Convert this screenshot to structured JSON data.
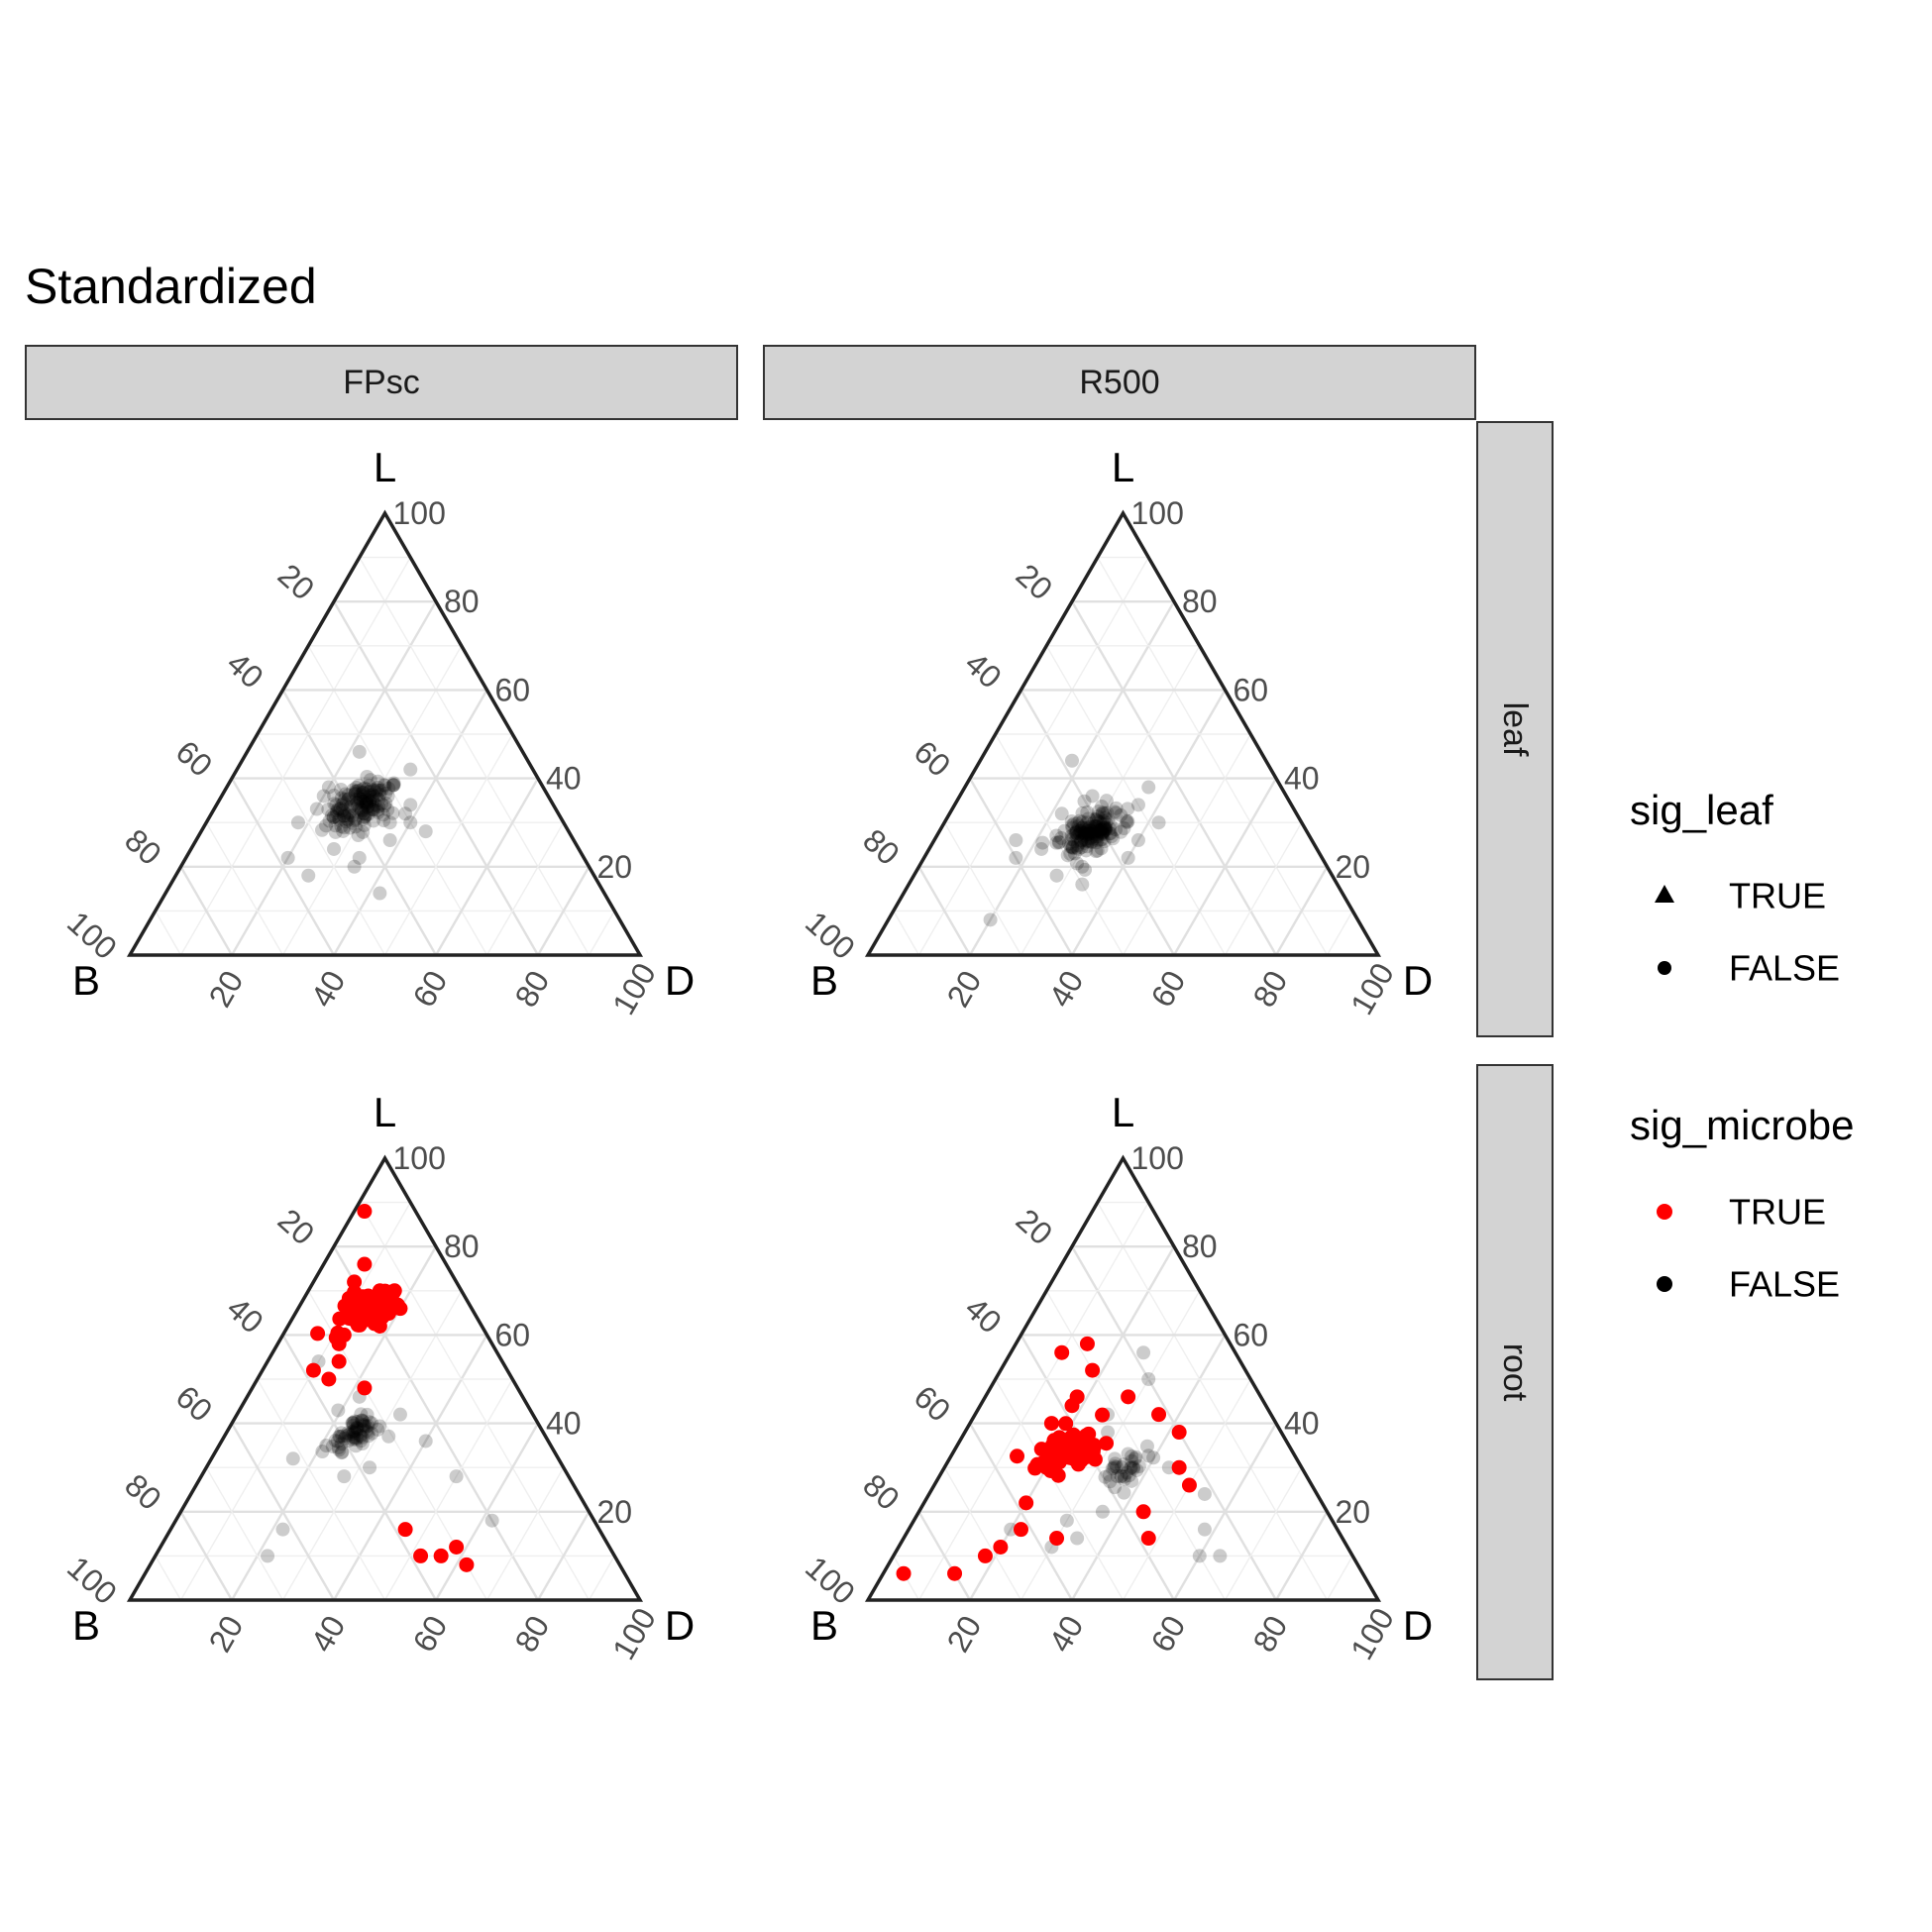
{
  "chart_data": {
    "type": "scatter",
    "subtype": "ternary",
    "title": "Standardized",
    "axes": {
      "top": "L",
      "left": "B",
      "right": "D"
    },
    "ticks": [
      20,
      40,
      60,
      80,
      100
    ],
    "grid": true,
    "col_facets": [
      "FPsc",
      "R500"
    ],
    "row_facets": [
      "leaf",
      "root"
    ],
    "colors": {
      "sig_true": "#ff0000",
      "sig_false": "#000000",
      "grid": "#e3e3e3",
      "strip": "#d3d3d3"
    },
    "legends": [
      {
        "title": "sig_leaf",
        "items": [
          {
            "label": "TRUE",
            "shape": "triangle"
          },
          {
            "label": "FALSE",
            "shape": "circle"
          }
        ]
      },
      {
        "title": "sig_microbe",
        "items": [
          {
            "label": "TRUE",
            "color": "#ff0000"
          },
          {
            "label": "FALSE",
            "color": "#000000"
          }
        ]
      }
    ],
    "legend_position": "right",
    "panels": [
      {
        "col": "FPsc",
        "row": "leaf",
        "clusters": [
          {
            "L": 34,
            "B": 38,
            "D": 28,
            "sd": 3.0,
            "n": 150,
            "sig": false
          }
        ],
        "points": [
          {
            "L": 30,
            "B": 52,
            "D": 18,
            "sig": false
          },
          {
            "L": 22,
            "B": 44,
            "D": 34,
            "sig": false
          },
          {
            "L": 30,
            "B": 30,
            "D": 40,
            "sig": false
          },
          {
            "L": 14,
            "B": 44,
            "D": 42,
            "sig": false
          },
          {
            "L": 22,
            "B": 58,
            "D": 20,
            "sig": false
          },
          {
            "L": 20,
            "B": 46,
            "D": 34,
            "sig": false
          },
          {
            "L": 46,
            "B": 32,
            "D": 22,
            "sig": false
          },
          {
            "L": 30,
            "B": 34,
            "D": 36,
            "sig": false
          },
          {
            "L": 26,
            "B": 36,
            "D": 38,
            "sig": false
          },
          {
            "L": 18,
            "B": 56,
            "D": 26,
            "sig": false
          },
          {
            "L": 42,
            "B": 24,
            "D": 34,
            "sig": false
          },
          {
            "L": 32,
            "B": 30,
            "D": 38,
            "sig": false
          },
          {
            "L": 36,
            "B": 44,
            "D": 20,
            "sig": false
          },
          {
            "L": 28,
            "B": 28,
            "D": 44,
            "sig": false
          },
          {
            "L": 34,
            "B": 28,
            "D": 38,
            "sig": false
          },
          {
            "L": 24,
            "B": 48,
            "D": 28,
            "sig": false
          },
          {
            "L": 38,
            "B": 42,
            "D": 20,
            "sig": false
          }
        ]
      },
      {
        "col": "R500",
        "row": "leaf",
        "clusters": [
          {
            "L": 28,
            "B": 42,
            "D": 30,
            "sd": 2.5,
            "n": 160,
            "sig": false
          }
        ],
        "points": [
          {
            "L": 8,
            "B": 72,
            "D": 20,
            "sig": false
          },
          {
            "L": 22,
            "B": 60,
            "D": 18,
            "sig": false
          },
          {
            "L": 44,
            "B": 38,
            "D": 18,
            "sig": false
          },
          {
            "L": 38,
            "B": 26,
            "D": 36,
            "sig": false
          },
          {
            "L": 24,
            "B": 54,
            "D": 22,
            "sig": false
          },
          {
            "L": 18,
            "B": 54,
            "D": 28,
            "sig": false
          },
          {
            "L": 34,
            "B": 30,
            "D": 36,
            "sig": false
          },
          {
            "L": 30,
            "B": 28,
            "D": 42,
            "sig": false
          },
          {
            "L": 20,
            "B": 48,
            "D": 32,
            "sig": false
          },
          {
            "L": 26,
            "B": 34,
            "D": 40,
            "sig": false
          },
          {
            "L": 16,
            "B": 50,
            "D": 34,
            "sig": false
          },
          {
            "L": 36,
            "B": 38,
            "D": 26,
            "sig": false
          },
          {
            "L": 32,
            "B": 46,
            "D": 22,
            "sig": false
          },
          {
            "L": 26,
            "B": 58,
            "D": 16,
            "sig": false
          },
          {
            "L": 22,
            "B": 38,
            "D": 40,
            "sig": false
          }
        ]
      },
      {
        "col": "FPsc",
        "row": "root",
        "clusters": [
          {
            "L": 66,
            "B": 21,
            "D": 13,
            "sd": 2.5,
            "n": 75,
            "sig": true
          },
          {
            "L": 38,
            "B": 37,
            "D": 25,
            "sd": 2.2,
            "n": 65,
            "sig": false
          }
        ],
        "points": [
          {
            "L": 88,
            "B": 10,
            "D": 2,
            "sig": true
          },
          {
            "L": 76,
            "B": 16,
            "D": 8,
            "sig": true
          },
          {
            "L": 70,
            "B": 16,
            "D": 14,
            "sig": true
          },
          {
            "L": 52,
            "B": 38,
            "D": 10,
            "sig": true
          },
          {
            "L": 48,
            "B": 30,
            "D": 22,
            "sig": true
          },
          {
            "L": 72,
            "B": 20,
            "D": 8,
            "sig": true
          },
          {
            "L": 60,
            "B": 28,
            "D": 12,
            "sig": true
          },
          {
            "L": 66,
            "B": 14,
            "D": 20,
            "sig": true
          },
          {
            "L": 50,
            "B": 36,
            "D": 14,
            "sig": true
          },
          {
            "L": 62,
            "B": 20,
            "D": 18,
            "sig": true
          },
          {
            "L": 54,
            "B": 32,
            "D": 14,
            "sig": true
          },
          {
            "L": 58,
            "B": 30,
            "D": 12,
            "sig": true
          },
          {
            "L": 16,
            "B": 38,
            "D": 46,
            "sig": true
          },
          {
            "L": 10,
            "B": 38,
            "D": 52,
            "sig": true
          },
          {
            "L": 10,
            "B": 34,
            "D": 56,
            "sig": true
          },
          {
            "L": 12,
            "B": 30,
            "D": 58,
            "sig": true
          },
          {
            "L": 8,
            "B": 30,
            "D": 62,
            "sig": true
          },
          {
            "L": 10,
            "B": 68,
            "D": 22,
            "sig": false
          },
          {
            "L": 16,
            "B": 62,
            "D": 22,
            "sig": false
          },
          {
            "L": 54,
            "B": 36,
            "D": 10,
            "sig": false
          },
          {
            "L": 32,
            "B": 52,
            "D": 16,
            "sig": false
          },
          {
            "L": 42,
            "B": 26,
            "D": 32,
            "sig": false
          },
          {
            "L": 36,
            "B": 24,
            "D": 40,
            "sig": false
          },
          {
            "L": 28,
            "B": 22,
            "D": 50,
            "sig": false
          },
          {
            "L": 18,
            "B": 20,
            "D": 62,
            "sig": false
          },
          {
            "L": 34,
            "B": 42,
            "D": 24,
            "sig": false
          },
          {
            "L": 30,
            "B": 38,
            "D": 32,
            "sig": false
          },
          {
            "L": 46,
            "B": 32,
            "D": 22,
            "sig": false
          },
          {
            "L": 28,
            "B": 44,
            "D": 28,
            "sig": false
          }
        ]
      },
      {
        "col": "R500",
        "row": "root",
        "clusters": [
          {
            "L": 34,
            "B": 43,
            "D": 23,
            "sd": 2.5,
            "n": 70,
            "sig": true
          },
          {
            "L": 30,
            "B": 34,
            "D": 36,
            "sd": 2.0,
            "n": 35,
            "sig": false
          }
        ],
        "points": [
          {
            "L": 6,
            "B": 90,
            "D": 4,
            "sig": true
          },
          {
            "L": 6,
            "B": 80,
            "D": 14,
            "sig": true
          },
          {
            "L": 10,
            "B": 72,
            "D": 18,
            "sig": true
          },
          {
            "L": 12,
            "B": 68,
            "D": 20,
            "sig": true
          },
          {
            "L": 16,
            "B": 62,
            "D": 22,
            "sig": true
          },
          {
            "L": 14,
            "B": 56,
            "D": 30,
            "sig": true
          },
          {
            "L": 58,
            "B": 28,
            "D": 14,
            "sig": true
          },
          {
            "L": 56,
            "B": 34,
            "D": 10,
            "sig": true
          },
          {
            "L": 52,
            "B": 30,
            "D": 18,
            "sig": true
          },
          {
            "L": 46,
            "B": 26,
            "D": 28,
            "sig": true
          },
          {
            "L": 42,
            "B": 22,
            "D": 36,
            "sig": true
          },
          {
            "L": 38,
            "B": 20,
            "D": 42,
            "sig": true
          },
          {
            "L": 30,
            "B": 24,
            "D": 46,
            "sig": true
          },
          {
            "L": 26,
            "B": 24,
            "D": 50,
            "sig": true
          },
          {
            "L": 14,
            "B": 38,
            "D": 48,
            "sig": true
          },
          {
            "L": 20,
            "B": 36,
            "D": 44,
            "sig": true
          },
          {
            "L": 44,
            "B": 38,
            "D": 18,
            "sig": true
          },
          {
            "L": 40,
            "B": 44,
            "D": 16,
            "sig": true
          },
          {
            "L": 46,
            "B": 36,
            "D": 18,
            "sig": true
          },
          {
            "L": 22,
            "B": 58,
            "D": 20,
            "sig": true
          },
          {
            "L": 30,
            "B": 50,
            "D": 20,
            "sig": true
          },
          {
            "L": 50,
            "B": 20,
            "D": 30,
            "sig": false
          },
          {
            "L": 56,
            "B": 18,
            "D": 26,
            "sig": false
          },
          {
            "L": 24,
            "B": 22,
            "D": 54,
            "sig": false
          },
          {
            "L": 16,
            "B": 26,
            "D": 58,
            "sig": false
          },
          {
            "L": 10,
            "B": 30,
            "D": 60,
            "sig": false
          },
          {
            "L": 10,
            "B": 26,
            "D": 64,
            "sig": false
          },
          {
            "L": 16,
            "B": 64,
            "D": 20,
            "sig": false
          },
          {
            "L": 18,
            "B": 52,
            "D": 30,
            "sig": false
          },
          {
            "L": 14,
            "B": 52,
            "D": 34,
            "sig": false
          },
          {
            "L": 12,
            "B": 58,
            "D": 30,
            "sig": false
          },
          {
            "L": 30,
            "B": 26,
            "D": 44,
            "sig": false
          },
          {
            "L": 20,
            "B": 44,
            "D": 36,
            "sig": false
          },
          {
            "L": 42,
            "B": 32,
            "D": 26,
            "sig": false
          },
          {
            "L": 38,
            "B": 34,
            "D": 28,
            "sig": false
          }
        ]
      }
    ]
  }
}
